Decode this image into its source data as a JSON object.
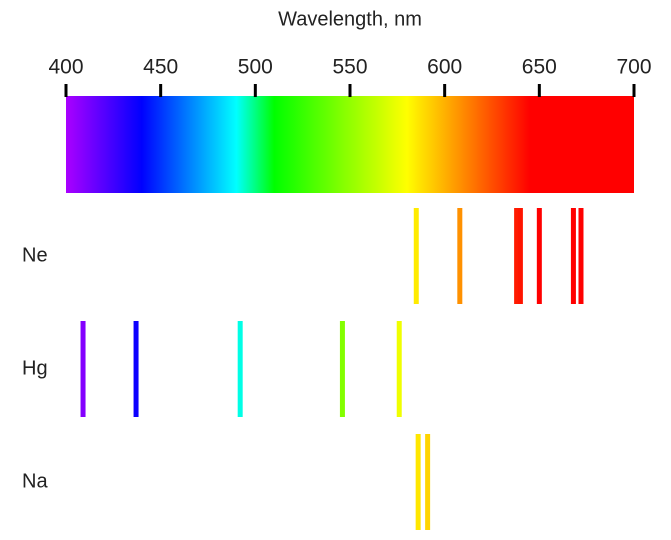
{
  "chart_data": {
    "type": "spectral-lines",
    "xlabel": "Wavelength, nm",
    "xlim": [
      400,
      700
    ],
    "xticks": [
      400,
      450,
      500,
      550,
      600,
      650,
      700
    ],
    "series": [
      {
        "name": "Ne",
        "values": [
          585,
          608,
          638,
          640,
          650,
          668,
          672
        ]
      },
      {
        "name": "Hg",
        "values": [
          409,
          437,
          492,
          546,
          576
        ]
      },
      {
        "name": "Na",
        "values": [
          586,
          591
        ]
      }
    ]
  }
}
